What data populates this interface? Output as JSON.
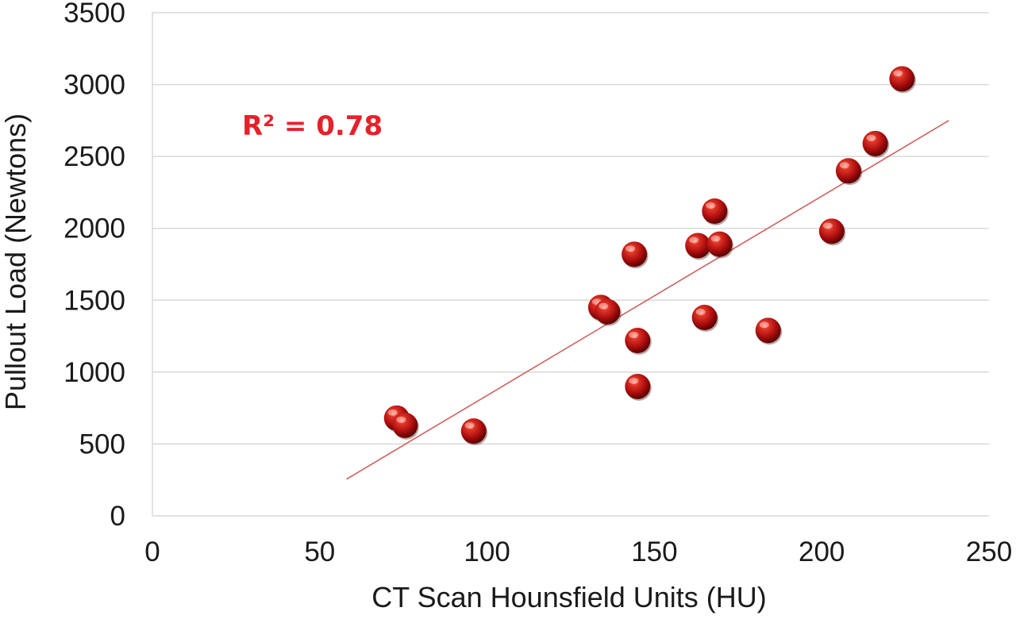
{
  "chart_data": {
    "type": "scatter",
    "title": "",
    "xlabel": "CT Scan Hounsfield Units (HU)",
    "ylabel": "Pullout Load (Newtons)",
    "xlim": [
      0,
      250
    ],
    "ylim": [
      0,
      3500
    ],
    "xticks": [
      "0",
      "50",
      "100",
      "150",
      "200",
      "250"
    ],
    "yticks": [
      "0",
      "500",
      "1000",
      "1500",
      "2000",
      "2500",
      "3000",
      "3500"
    ],
    "grid": "horizontal",
    "annotation": "R² = 0.78",
    "colors": {
      "marker": "#c00000",
      "trendline": "#d06060",
      "annotation": "#e8202a"
    },
    "series": [
      {
        "points": [
          {
            "x": 73,
            "y": 680
          },
          {
            "x": 75.5,
            "y": 630
          },
          {
            "x": 96,
            "y": 590
          },
          {
            "x": 134,
            "y": 1450
          },
          {
            "x": 136,
            "y": 1420
          },
          {
            "x": 144,
            "y": 1820
          },
          {
            "x": 145,
            "y": 1220
          },
          {
            "x": 145,
            "y": 900
          },
          {
            "x": 163,
            "y": 1880
          },
          {
            "x": 165,
            "y": 1380
          },
          {
            "x": 168,
            "y": 2120
          },
          {
            "x": 169.5,
            "y": 1890
          },
          {
            "x": 184,
            "y": 1290
          },
          {
            "x": 203,
            "y": 1980
          },
          {
            "x": 208,
            "y": 2400
          },
          {
            "x": 216,
            "y": 2590
          },
          {
            "x": 224,
            "y": 3040
          }
        ]
      }
    ],
    "trendline": {
      "type": "linear",
      "x_range": [
        58,
        238
      ],
      "y_range": [
        255,
        2750
      ]
    }
  }
}
